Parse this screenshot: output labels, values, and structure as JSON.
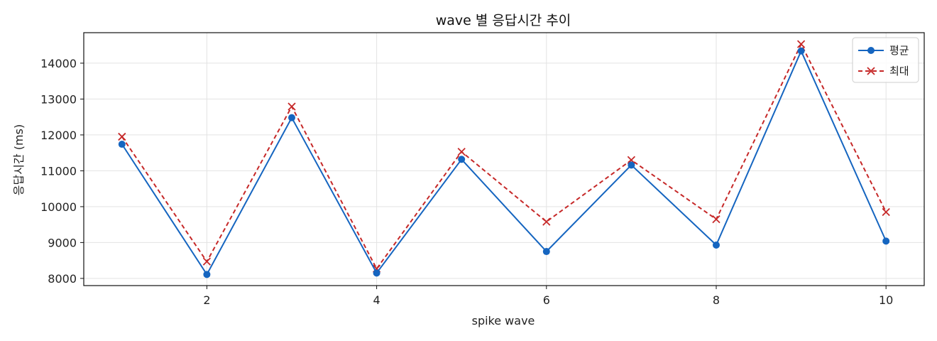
{
  "chart_data": {
    "type": "line",
    "title": "wave 별 응답시간 추이",
    "xlabel": "spike wave",
    "ylabel": "응답시간 (ms)",
    "x": [
      1,
      2,
      3,
      4,
      5,
      6,
      7,
      8,
      9,
      10
    ],
    "xlim": [
      0.55,
      10.45
    ],
    "ylim": [
      7800,
      14850
    ],
    "xticks": [
      2,
      4,
      6,
      8,
      10
    ],
    "yticks": [
      8000,
      9000,
      10000,
      11000,
      12000,
      13000,
      14000
    ],
    "grid": true,
    "legend": "top-right",
    "series": [
      {
        "name": "평균",
        "color": "#1565c0",
        "marker": "circle",
        "linestyle": "solid",
        "values": [
          11740,
          8110,
          12480,
          8150,
          11320,
          8750,
          11160,
          8930,
          14340,
          9040
        ]
      },
      {
        "name": "최대",
        "color": "#c62828",
        "marker": "x",
        "linestyle": "dashed",
        "values": [
          11950,
          8470,
          12790,
          8270,
          11530,
          9580,
          11300,
          9650,
          14530,
          9850
        ]
      }
    ]
  }
}
